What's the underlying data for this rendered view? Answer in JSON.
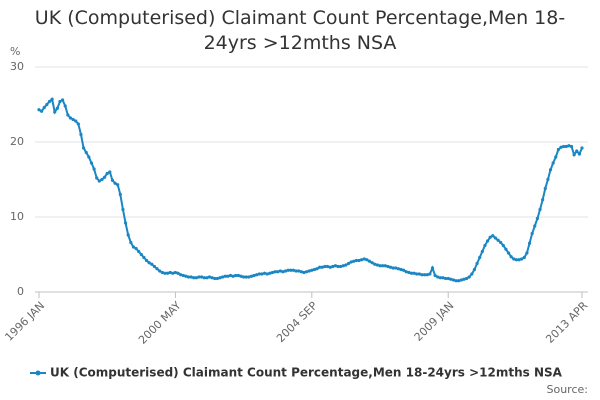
{
  "chart_data": {
    "type": "line",
    "title": "UK (Computerised) Claimant Count Percentage,Men 18-24yrs >12mths NSA",
    "y_label": "%",
    "source_label": "Source:",
    "categories": [
      "1996 JAN",
      null,
      null,
      null,
      null,
      null,
      null,
      null,
      null,
      null,
      null,
      null,
      null,
      null,
      null,
      null,
      null,
      null,
      null,
      null,
      null,
      null,
      null,
      null,
      null,
      null,
      null,
      null,
      null,
      null,
      null,
      null,
      null,
      null,
      null,
      null,
      null,
      null,
      null,
      null,
      null,
      null,
      null,
      null,
      null,
      null,
      null,
      null,
      null,
      null,
      null,
      null,
      "2000 MAY",
      null,
      null,
      null,
      null,
      null,
      null,
      null,
      null,
      null,
      null,
      null,
      null,
      null,
      null,
      null,
      null,
      null,
      null,
      null,
      null,
      null,
      null,
      null,
      null,
      null,
      null,
      null,
      null,
      null,
      null,
      null,
      null,
      null,
      null,
      null,
      null,
      null,
      null,
      null,
      null,
      null,
      null,
      null,
      null,
      null,
      null,
      null,
      null,
      null,
      null,
      null,
      "2004 SEP",
      null,
      null,
      null,
      null,
      null,
      null,
      null,
      null,
      null,
      null,
      null,
      null,
      null,
      null,
      null,
      null,
      null,
      null,
      null,
      null,
      null,
      null,
      null,
      null,
      null,
      null,
      null,
      null,
      null,
      null,
      null,
      null,
      null,
      null,
      null,
      null,
      null,
      null,
      null,
      null,
      null,
      null,
      null,
      null,
      null,
      null,
      null,
      null,
      null,
      null,
      null,
      "2009 JAN",
      null,
      null,
      null,
      null,
      null,
      null,
      null,
      null,
      null,
      null,
      null,
      null,
      null,
      null,
      null,
      null,
      null,
      null,
      null,
      null,
      null,
      null,
      null,
      null,
      null,
      null,
      null,
      null,
      null,
      null,
      null,
      null,
      null,
      null,
      null,
      null,
      null,
      null,
      null,
      null,
      null,
      null,
      null,
      null,
      null,
      null,
      null,
      null,
      null,
      null,
      "2013 APR"
    ],
    "series": [
      {
        "name": "UK (Computerised) Claimant Count Percentage,Men 18-24yrs >12mths NSA",
        "color": "#1a87c4",
        "values": [
          24.3,
          24.1,
          24.6,
          25.0,
          25.4,
          25.7,
          24.0,
          24.5,
          25.4,
          25.6,
          24.8,
          23.6,
          23.2,
          23.0,
          22.8,
          22.4,
          21.0,
          19.2,
          18.6,
          18.0,
          17.2,
          16.4,
          15.2,
          14.8,
          15.0,
          15.3,
          15.8,
          16.0,
          14.9,
          14.5,
          14.3,
          13.0,
          11.0,
          9.2,
          7.6,
          6.6,
          6.0,
          5.8,
          5.4,
          5.0,
          4.6,
          4.2,
          3.9,
          3.7,
          3.4,
          3.1,
          2.8,
          2.6,
          2.5,
          2.5,
          2.6,
          2.5,
          2.6,
          2.5,
          2.3,
          2.2,
          2.1,
          2.0,
          2.0,
          1.9,
          1.9,
          2.0,
          2.0,
          1.9,
          1.9,
          2.0,
          1.9,
          1.8,
          1.8,
          1.9,
          2.0,
          2.1,
          2.1,
          2.2,
          2.1,
          2.2,
          2.2,
          2.1,
          2.0,
          2.0,
          2.0,
          2.1,
          2.2,
          2.3,
          2.4,
          2.4,
          2.5,
          2.4,
          2.5,
          2.6,
          2.7,
          2.7,
          2.8,
          2.7,
          2.8,
          2.9,
          2.9,
          2.9,
          2.8,
          2.8,
          2.7,
          2.6,
          2.7,
          2.8,
          2.9,
          3.0,
          3.1,
          3.3,
          3.3,
          3.4,
          3.4,
          3.3,
          3.4,
          3.5,
          3.4,
          3.4,
          3.5,
          3.6,
          3.8,
          4.0,
          4.1,
          4.2,
          4.2,
          4.3,
          4.4,
          4.3,
          4.1,
          3.9,
          3.7,
          3.6,
          3.5,
          3.5,
          3.5,
          3.4,
          3.3,
          3.2,
          3.2,
          3.1,
          3.0,
          2.9,
          2.7,
          2.6,
          2.5,
          2.5,
          2.4,
          2.4,
          2.3,
          2.3,
          2.3,
          2.4,
          3.2,
          2.2,
          2.0,
          1.9,
          1.9,
          1.8,
          1.8,
          1.7,
          1.6,
          1.5,
          1.5,
          1.6,
          1.7,
          1.8,
          2.0,
          2.4,
          3.0,
          3.8,
          4.6,
          5.4,
          6.2,
          6.8,
          7.3,
          7.5,
          7.2,
          6.9,
          6.6,
          6.2,
          5.7,
          5.2,
          4.7,
          4.4,
          4.3,
          4.3,
          4.4,
          4.6,
          5.2,
          6.5,
          7.8,
          8.8,
          9.8,
          11.0,
          12.3,
          13.8,
          15.0,
          16.3,
          17.2,
          18.0,
          19.0,
          19.3,
          19.4,
          19.4,
          19.5,
          19.4,
          18.3,
          18.8,
          18.4,
          19.2
        ]
      }
    ],
    "ylim": [
      0,
      30
    ],
    "yticks": [
      0,
      10,
      20,
      30
    ],
    "grid": true
  }
}
